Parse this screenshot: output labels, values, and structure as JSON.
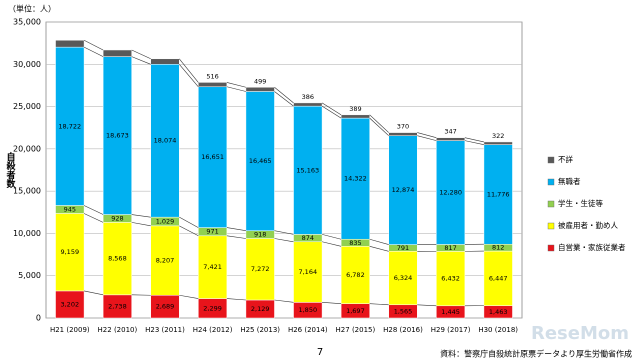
{
  "chart_data": {
    "type": "stacked_bar",
    "unit_label": "（単位：人）",
    "ylabel": "自殺者数",
    "categories": [
      "H21 (2009)",
      "H22 (2010)",
      "H23 (2011)",
      "H24 (2012)",
      "H25 (2013)",
      "H26 (2014)",
      "H27 (2015)",
      "H28 (2016)",
      "H29 (2017)",
      "H30 (2018)"
    ],
    "series": [
      {
        "name": "自営業・家族従業者",
        "color": "#e8141b",
        "values": [
          3202,
          2738,
          2689,
          2299,
          2129,
          1850,
          1697,
          1565,
          1445,
          1463
        ],
        "value_labels": [
          "3,202",
          "2,738",
          "2,689",
          "2,299",
          "2,129",
          "1,850",
          "1,697",
          "1,565",
          "1,445",
          "1,463"
        ]
      },
      {
        "name": "被雇用者・勤め人",
        "color": "#ffff00",
        "values": [
          9159,
          8568,
          8207,
          7421,
          7272,
          7164,
          6782,
          6324,
          6432,
          6447
        ],
        "value_labels": [
          "9,159",
          "8,568",
          "8,207",
          "7,421",
          "7,272",
          "7,164",
          "6,782",
          "6,324",
          "6,432",
          "6,447"
        ]
      },
      {
        "name": "学生・生徒等",
        "color": "#92d050",
        "values": [
          945,
          928,
          1029,
          971,
          918,
          874,
          835,
          791,
          817,
          812
        ],
        "value_labels": [
          "945",
          "928",
          "1,029",
          "971",
          "918",
          "874",
          "835",
          "791",
          "817",
          "812"
        ]
      },
      {
        "name": "無職者",
        "color": "#00b0f0",
        "values": [
          18722,
          18673,
          18074,
          16651,
          16465,
          15163,
          14322,
          12874,
          12280,
          11776
        ],
        "value_labels": [
          "18,722",
          "18,673",
          "18,074",
          "16,651",
          "16,465",
          "15,163",
          "14,322",
          "12,874",
          "12,280",
          "11,776"
        ]
      },
      {
        "name": "不詳",
        "color": "#595959",
        "values": [
          817,
          783,
          652,
          516,
          499,
          386,
          389,
          370,
          347,
          322
        ]
      }
    ],
    "ylim": [
      0,
      35000
    ],
    "yticks": [
      0,
      {
        "value": 5000,
        "label": "5,000"
      },
      {
        "value": 10000,
        "label": "10,000"
      },
      {
        "value": 15000,
        "label": "15,000"
      },
      {
        "value": 20000,
        "label": "20,000"
      },
      {
        "value": 25000,
        "label": "25,000"
      },
      {
        "value": 30000,
        "label": "30,000"
      },
      {
        "value": 35000,
        "label": "35,000"
      }
    ],
    "grid": true,
    "legend": "right",
    "page_number": "7",
    "source": "資料：警察庁自殺統計原票データより厚生労働省作成",
    "watermark": "ReseMom"
  }
}
